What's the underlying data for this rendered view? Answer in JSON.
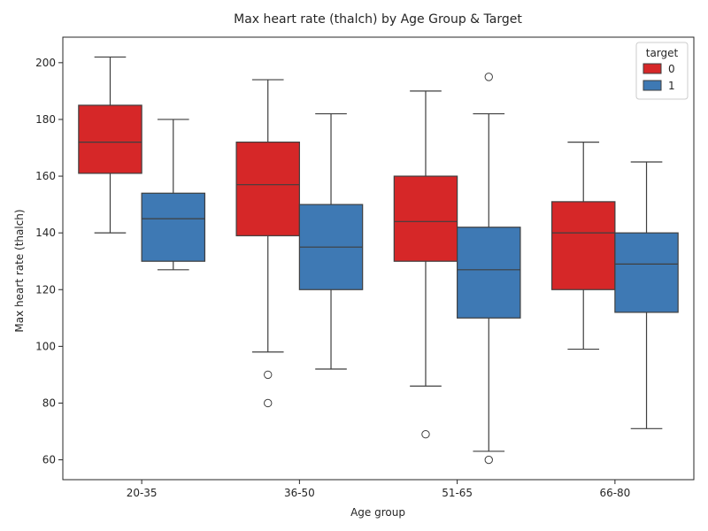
{
  "chart_data": {
    "type": "box",
    "title": "Max heart rate (thalch) by Age Group & Target",
    "xlabel": "Age group",
    "ylabel": "Max heart rate (thalch)",
    "ylim": [
      53,
      209
    ],
    "yticks": [
      60,
      80,
      100,
      120,
      140,
      160,
      180,
      200
    ],
    "categories": [
      "20-35",
      "36-50",
      "51-65",
      "66-80"
    ],
    "legend": {
      "title": "target",
      "position": "top-right"
    },
    "grid": false,
    "series": [
      {
        "name": "0",
        "color": "#d62728",
        "boxes": [
          {
            "whisker_low": 140,
            "q1": 161,
            "median": 172,
            "q3": 185,
            "whisker_high": 202,
            "outliers": []
          },
          {
            "whisker_low": 98,
            "q1": 139,
            "median": 157,
            "q3": 172,
            "whisker_high": 194,
            "outliers": [
              90,
              80
            ]
          },
          {
            "whisker_low": 86,
            "q1": 130,
            "median": 144,
            "q3": 160,
            "whisker_high": 190,
            "outliers": [
              69
            ]
          },
          {
            "whisker_low": 99,
            "q1": 120,
            "median": 140,
            "q3": 151,
            "whisker_high": 172,
            "outliers": []
          }
        ]
      },
      {
        "name": "1",
        "color": "#3e79b4",
        "boxes": [
          {
            "whisker_low": 127,
            "q1": 130,
            "median": 145,
            "q3": 154,
            "whisker_high": 180,
            "outliers": []
          },
          {
            "whisker_low": 92,
            "q1": 120,
            "median": 135,
            "q3": 150,
            "whisker_high": 182,
            "outliers": []
          },
          {
            "whisker_low": 63,
            "q1": 110,
            "median": 127,
            "q3": 142,
            "whisker_high": 182,
            "outliers": [
              195,
              60
            ]
          },
          {
            "whisker_low": 71,
            "q1": 112,
            "median": 129,
            "q3": 140,
            "whisker_high": 165,
            "outliers": []
          }
        ]
      }
    ]
  }
}
